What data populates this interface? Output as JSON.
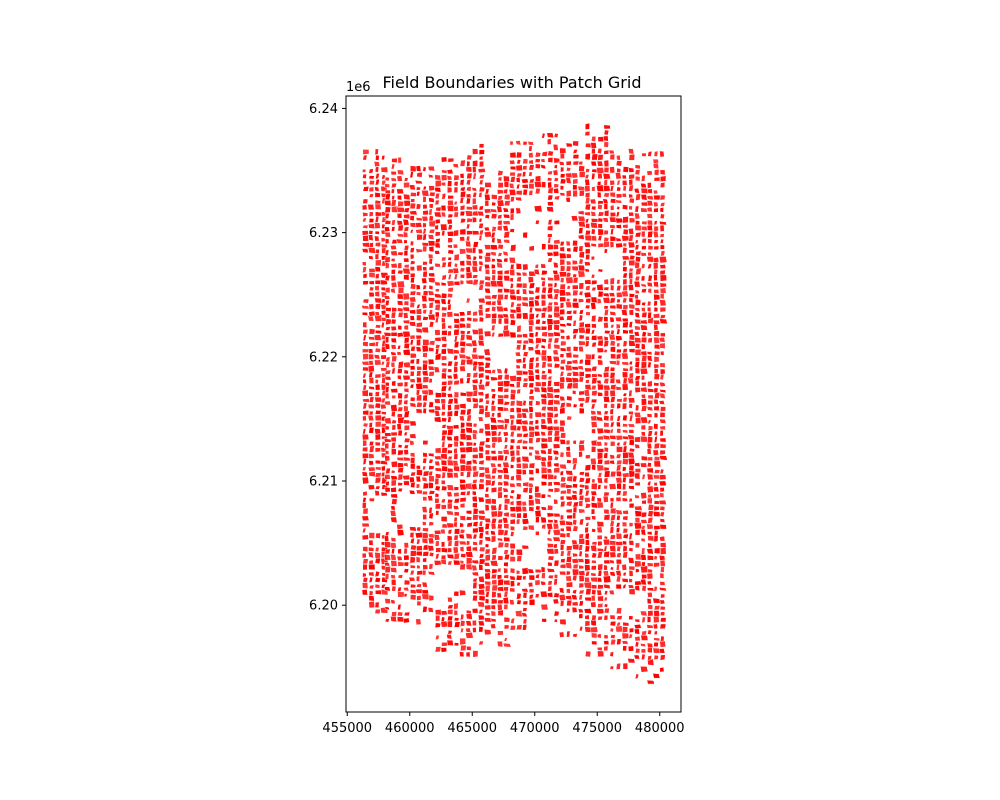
{
  "chart_data": {
    "type": "map",
    "title": "Field Boundaries with Patch Grid",
    "xlabel": "",
    "ylabel": "",
    "xlim": [
      454900,
      481700
    ],
    "ylim": [
      6191400,
      6241000
    ],
    "x_ticks": [
      455000,
      460000,
      465000,
      470000,
      475000,
      480000
    ],
    "x_tick_labels": [
      "455000",
      "460000",
      "465000",
      "470000",
      "475000",
      "480000"
    ],
    "y_ticks": [
      6200000,
      6210000,
      6220000,
      6230000,
      6240000
    ],
    "y_tick_labels": [
      "6.20",
      "6.21",
      "6.22",
      "6.23",
      "6.24"
    ],
    "y_offset_label": "1e6",
    "grid": false,
    "legend": false,
    "field_color": "#ff0000",
    "field_extent": {
      "x_min": 456200,
      "x_max": 480200,
      "y_min": 6193600,
      "y_max": 6238600
    },
    "field_columns": [
      {
        "x0": 456200,
        "x1": 458000,
        "y_min": 6198800,
        "y_max": 6236800
      },
      {
        "x0": 458000,
        "x1": 460000,
        "y_min": 6198600,
        "y_max": 6236000
      },
      {
        "x0": 460000,
        "x1": 462000,
        "y_min": 6198400,
        "y_max": 6235200
      },
      {
        "x0": 462000,
        "x1": 464000,
        "y_min": 6196200,
        "y_max": 6235800
      },
      {
        "x0": 464000,
        "x1": 466000,
        "y_min": 6195800,
        "y_max": 6237000
      },
      {
        "x0": 466000,
        "x1": 468000,
        "y_min": 6196600,
        "y_max": 6235000
      },
      {
        "x0": 468000,
        "x1": 470000,
        "y_min": 6198000,
        "y_max": 6238000
      },
      {
        "x0": 470000,
        "x1": 472000,
        "y_min": 6198600,
        "y_max": 6237800
      },
      {
        "x0": 472000,
        "x1": 474000,
        "y_min": 6197400,
        "y_max": 6237200
      },
      {
        "x0": 474000,
        "x1": 476000,
        "y_min": 6195800,
        "y_max": 6238600
      },
      {
        "x0": 476000,
        "x1": 478000,
        "y_min": 6194800,
        "y_max": 6236600
      },
      {
        "x0": 478000,
        "x1": 480200,
        "y_min": 6193600,
        "y_max": 6236400
      }
    ],
    "empty_areas": [
      {
        "x0": 468500,
        "x1": 471200,
        "y0": 6227600,
        "y1": 6233000
      },
      {
        "x0": 471500,
        "x1": 473500,
        "y0": 6229500,
        "y1": 6232500
      },
      {
        "x0": 463500,
        "x1": 465500,
        "y0": 6223800,
        "y1": 6225800
      },
      {
        "x0": 460500,
        "x1": 462500,
        "y0": 6212500,
        "y1": 6215200
      },
      {
        "x0": 456500,
        "x1": 458500,
        "y0": 6206000,
        "y1": 6208600
      },
      {
        "x0": 458800,
        "x1": 461200,
        "y0": 6206500,
        "y1": 6209000
      },
      {
        "x0": 461500,
        "x1": 465000,
        "y0": 6200000,
        "y1": 6203000
      },
      {
        "x0": 468500,
        "x1": 471000,
        "y0": 6203200,
        "y1": 6205800
      },
      {
        "x0": 466500,
        "x1": 468500,
        "y0": 6219000,
        "y1": 6221500
      },
      {
        "x0": 472500,
        "x1": 474500,
        "y0": 6213500,
        "y1": 6216000
      },
      {
        "x0": 474500,
        "x1": 477000,
        "y0": 6226500,
        "y1": 6229000
      },
      {
        "x0": 476000,
        "x1": 479000,
        "y0": 6199500,
        "y1": 6201200
      }
    ]
  }
}
